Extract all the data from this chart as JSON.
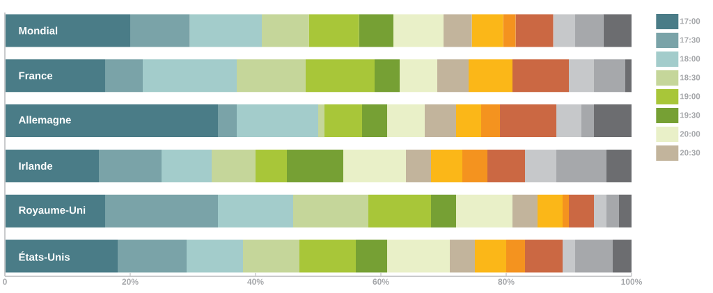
{
  "chart_data": {
    "type": "bar",
    "orientation": "horizontal",
    "stacked": true,
    "categories": [
      "Mondial",
      "France",
      "Allemagne",
      "Irlande",
      "Royaume-Uni",
      "États-Unis"
    ],
    "series": [
      {
        "name": "17:00",
        "color": "#4a7c87",
        "values": [
          20,
          16,
          34,
          15,
          16,
          18
        ]
      },
      {
        "name": "17:30",
        "color": "#7aa3a8",
        "values": [
          9.5,
          6,
          3,
          10,
          18,
          11
        ]
      },
      {
        "name": "18:00",
        "color": "#a3cccb",
        "values": [
          11.5,
          15,
          13,
          8,
          12,
          9
        ]
      },
      {
        "name": "18:30",
        "color": "#c5d69a",
        "values": [
          7.5,
          11,
          1,
          7,
          12,
          9
        ]
      },
      {
        "name": "19:00",
        "color": "#a8c639",
        "values": [
          8,
          11,
          6,
          5,
          10,
          9
        ]
      },
      {
        "name": "19:30",
        "color": "#76a034",
        "values": [
          5.5,
          4,
          4,
          9,
          4,
          5
        ]
      },
      {
        "name": "20:00",
        "color": "#e9f0c8",
        "values": [
          8,
          6,
          6,
          10,
          9,
          10
        ]
      },
      {
        "name": "20:30",
        "color": "#c2b49c",
        "values": [
          4.5,
          5,
          5,
          4,
          4,
          4
        ]
      },
      {
        "color": "#fbb718",
        "values": [
          5,
          7,
          4,
          5,
          4,
          5
        ]
      },
      {
        "color": "#f4931f",
        "values": [
          2,
          0,
          3,
          4,
          1,
          3
        ]
      },
      {
        "color": "#cb6843",
        "values": [
          6,
          9,
          9,
          6,
          4,
          6
        ]
      },
      {
        "color": "#c6c8ca",
        "values": [
          3.5,
          4,
          4,
          5,
          2,
          2
        ]
      },
      {
        "color": "#a6a8ab",
        "values": [
          4.5,
          5,
          2,
          8,
          2,
          6
        ]
      },
      {
        "color": "#6c6d70",
        "values": [
          4.5,
          1,
          6,
          4,
          2,
          3
        ]
      }
    ],
    "xlim": [
      0,
      100
    ],
    "xticks": [
      {
        "value": 0,
        "label": "0"
      },
      {
        "value": 20,
        "label": "20%"
      },
      {
        "value": 40,
        "label": "40%"
      },
      {
        "value": 60,
        "label": "60%"
      },
      {
        "value": 80,
        "label": "80%"
      },
      {
        "value": 100,
        "label": "100%"
      }
    ],
    "legend": "top right"
  }
}
